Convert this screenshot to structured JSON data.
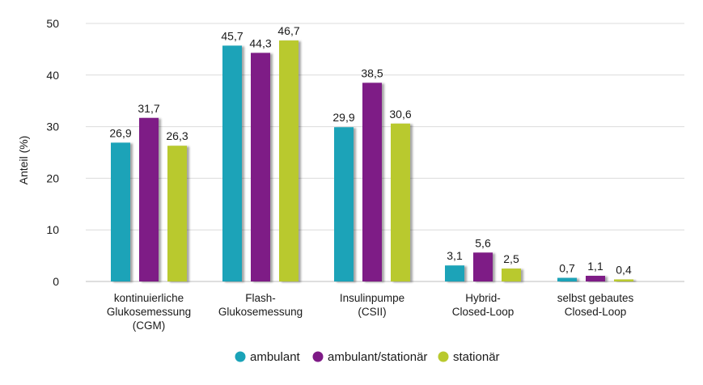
{
  "chart_data": {
    "type": "bar",
    "categories": [
      [
        "kontinuierliche",
        "Glukosemessung",
        "(CGM)"
      ],
      [
        "Flash-",
        "Glukosemessung"
      ],
      [
        "Insulinpumpe",
        "(CSII)"
      ],
      [
        "Hybrid-",
        "Closed-Loop"
      ],
      [
        "selbst gebautes",
        "Closed-Loop"
      ]
    ],
    "series": [
      {
        "name": "ambulant",
        "color": "#1aa3b8",
        "values": [
          26.9,
          45.7,
          29.9,
          3.1,
          0.7
        ],
        "labels": [
          "26,9",
          "45,7",
          "29,9",
          "3,1",
          "0,7"
        ]
      },
      {
        "name": "ambulant/stationär",
        "color": "#7e1a86",
        "values": [
          31.7,
          44.3,
          38.5,
          5.6,
          1.1
        ],
        "labels": [
          "31,7",
          "44,3",
          "38,5",
          "5,6",
          "1,1"
        ]
      },
      {
        "name": "stationär",
        "color": "#b9c92e",
        "values": [
          26.3,
          46.7,
          30.6,
          2.5,
          0.4
        ],
        "labels": [
          "26,3",
          "46,7",
          "30,6",
          "2,5",
          "0,4"
        ]
      }
    ],
    "ylabel": "Anteil (%)",
    "xlabel": "",
    "ylim": [
      0,
      50
    ],
    "yticks": [
      "0",
      "10",
      "20",
      "30",
      "40",
      "50"
    ],
    "grid": true,
    "legend_position": "bottom"
  }
}
